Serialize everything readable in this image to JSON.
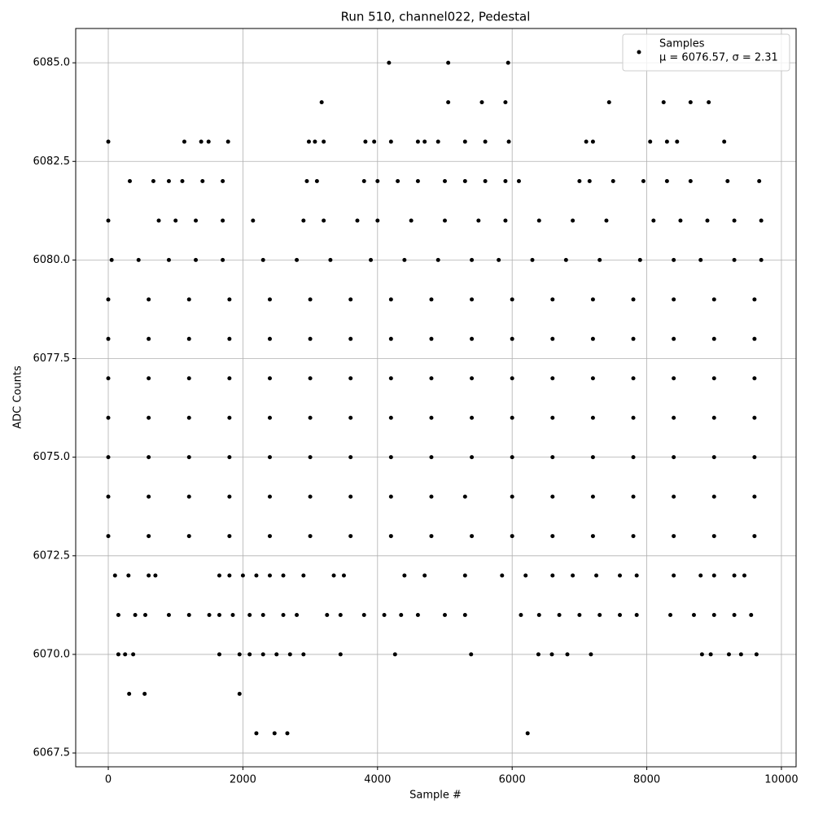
{
  "chart_data": {
    "type": "scatter",
    "title": "Run 510, channel022, Pedestal",
    "x_label": "Sample #",
    "y_label": "ADC Counts",
    "xlim": [
      -484,
      10218
    ],
    "ylim": [
      6067.15,
      6085.87
    ],
    "xticks": [
      0,
      2000,
      4000,
      6000,
      8000,
      10000
    ],
    "yticks": [
      6067.5,
      {
        "value": 6070,
        "label": "6070.0"
      },
      6072.5,
      {
        "value": 6075,
        "label": "6075.0"
      },
      6077.5,
      {
        "value": 6080,
        "label": "6080.0"
      },
      6082.5,
      {
        "value": 6085,
        "label": "6085.0"
      }
    ],
    "grid": true,
    "legend_position": "upper right",
    "legend_note": "μ = 6076.57, σ = 2.31",
    "series": [
      {
        "name": "Samples",
        "color": "#000000",
        "x": [
          4170,
          5050,
          5940,
          3170,
          5050,
          5550,
          5900,
          7440,
          8250,
          8650,
          8920,
          0,
          1130,
          1380,
          1490,
          1780,
          2980,
          3070,
          3200,
          3820,
          3950,
          4200,
          4600,
          4700,
          4900,
          5300,
          5600,
          5950,
          7100,
          7200,
          8050,
          8300,
          8450,
          9150,
          320,
          670,
          900,
          1100,
          1400,
          1700,
          2950,
          3100,
          3800,
          4000,
          4300,
          4600,
          5000,
          5300,
          5600,
          5900,
          6100,
          7000,
          7150,
          7500,
          7950,
          8300,
          8650,
          9200,
          9670,
          0,
          750,
          1000,
          1300,
          1700,
          2150,
          2900,
          3200,
          3700,
          4000,
          4500,
          5000,
          5500,
          5900,
          6400,
          6900,
          7400,
          8100,
          8500,
          8900,
          9300,
          9700,
          50,
          450,
          900,
          1300,
          1700,
          2300,
          2800,
          3300,
          3900,
          4400,
          4900,
          5400,
          5800,
          6300,
          6800,
          7300,
          7900,
          8400,
          8800,
          9300,
          9700,
          0,
          600,
          1200,
          1800,
          2400,
          3000,
          3600,
          4200,
          4800,
          5400,
          6000,
          6600,
          7200,
          7800,
          8400,
          9000,
          9600,
          0,
          600,
          1200,
          1800,
          2400,
          3000,
          3600,
          4200,
          4800,
          5400,
          6000,
          6600,
          7200,
          7800,
          8400,
          9000,
          9600,
          0,
          600,
          1200,
          1800,
          2400,
          3000,
          3600,
          4200,
          4800,
          5400,
          6000,
          6600,
          7200,
          7800,
          8400,
          9000,
          9600,
          0,
          600,
          1200,
          1800,
          2400,
          3000,
          3600,
          4200,
          4800,
          5400,
          6000,
          6600,
          7200,
          7800,
          8400,
          9000,
          9600,
          0,
          600,
          1200,
          1800,
          2400,
          3000,
          3600,
          4200,
          4800,
          5400,
          6000,
          6600,
          7200,
          7800,
          8400,
          9000,
          9600,
          0,
          600,
          1200,
          1800,
          2400,
          3000,
          3600,
          4200,
          4800,
          5300,
          6000,
          6600,
          7200,
          7800,
          8400,
          9000,
          9600,
          0,
          600,
          1200,
          1800,
          2400,
          3000,
          3600,
          4200,
          4800,
          5400,
          6000,
          6600,
          7200,
          7800,
          8400,
          9000,
          9600,
          100,
          300,
          600,
          700,
          1650,
          1800,
          2000,
          2200,
          2400,
          2600,
          2900,
          3350,
          3500,
          4400,
          4700,
          5300,
          5850,
          6200,
          6600,
          6900,
          7250,
          7600,
          7850,
          8400,
          8800,
          9000,
          9300,
          9450,
          150,
          400,
          550,
          900,
          1200,
          1500,
          1650,
          1850,
          2100,
          2300,
          2600,
          2800,
          3250,
          3450,
          3800,
          4100,
          4350,
          4600,
          5000,
          5300,
          6130,
          6400,
          6700,
          7000,
          7300,
          7600,
          7850,
          8350,
          8700,
          9000,
          9300,
          9550,
          150,
          250,
          370,
          1650,
          1950,
          2100,
          2300,
          2500,
          2700,
          2900,
          3450,
          4260,
          5390,
          6390,
          6590,
          6820,
          7170,
          8820,
          8950,
          9220,
          9400,
          9630,
          310,
          540,
          1950,
          2200,
          2470,
          2660,
          6230
        ],
        "values": [
          6085,
          6085,
          6085,
          6084,
          6084,
          6084,
          6084,
          6084,
          6084,
          6084,
          6084,
          6083,
          6083,
          6083,
          6083,
          6083,
          6083,
          6083,
          6083,
          6083,
          6083,
          6083,
          6083,
          6083,
          6083,
          6083,
          6083,
          6083,
          6083,
          6083,
          6083,
          6083,
          6083,
          6083,
          6082,
          6082,
          6082,
          6082,
          6082,
          6082,
          6082,
          6082,
          6082,
          6082,
          6082,
          6082,
          6082,
          6082,
          6082,
          6082,
          6082,
          6082,
          6082,
          6082,
          6082,
          6082,
          6082,
          6082,
          6082,
          6081,
          6081,
          6081,
          6081,
          6081,
          6081,
          6081,
          6081,
          6081,
          6081,
          6081,
          6081,
          6081,
          6081,
          6081,
          6081,
          6081,
          6081,
          6081,
          6081,
          6081,
          6081,
          6080,
          6080,
          6080,
          6080,
          6080,
          6080,
          6080,
          6080,
          6080,
          6080,
          6080,
          6080,
          6080,
          6080,
          6080,
          6080,
          6080,
          6080,
          6080,
          6080,
          6080,
          6079,
          6079,
          6079,
          6079,
          6079,
          6079,
          6079,
          6079,
          6079,
          6079,
          6079,
          6079,
          6079,
          6079,
          6079,
          6079,
          6079,
          6078,
          6078,
          6078,
          6078,
          6078,
          6078,
          6078,
          6078,
          6078,
          6078,
          6078,
          6078,
          6078,
          6078,
          6078,
          6078,
          6078,
          6077,
          6077,
          6077,
          6077,
          6077,
          6077,
          6077,
          6077,
          6077,
          6077,
          6077,
          6077,
          6077,
          6077,
          6077,
          6077,
          6077,
          6076,
          6076,
          6076,
          6076,
          6076,
          6076,
          6076,
          6076,
          6076,
          6076,
          6076,
          6076,
          6076,
          6076,
          6076,
          6076,
          6076,
          6075,
          6075,
          6075,
          6075,
          6075,
          6075,
          6075,
          6075,
          6075,
          6075,
          6075,
          6075,
          6075,
          6075,
          6075,
          6075,
          6075,
          6074,
          6074,
          6074,
          6074,
          6074,
          6074,
          6074,
          6074,
          6074,
          6074,
          6074,
          6074,
          6074,
          6074,
          6074,
          6074,
          6074,
          6073,
          6073,
          6073,
          6073,
          6073,
          6073,
          6073,
          6073,
          6073,
          6073,
          6073,
          6073,
          6073,
          6073,
          6073,
          6073,
          6073,
          6072,
          6072,
          6072,
          6072,
          6072,
          6072,
          6072,
          6072,
          6072,
          6072,
          6072,
          6072,
          6072,
          6072,
          6072,
          6072,
          6072,
          6072,
          6072,
          6072,
          6072,
          6072,
          6072,
          6072,
          6072,
          6072,
          6072,
          6072,
          6071,
          6071,
          6071,
          6071,
          6071,
          6071,
          6071,
          6071,
          6071,
          6071,
          6071,
          6071,
          6071,
          6071,
          6071,
          6071,
          6071,
          6071,
          6071,
          6071,
          6071,
          6071,
          6071,
          6071,
          6071,
          6071,
          6071,
          6071,
          6071,
          6071,
          6071,
          6071,
          6070,
          6070,
          6070,
          6070,
          6070,
          6070,
          6070,
          6070,
          6070,
          6070,
          6070,
          6070,
          6070,
          6070,
          6070,
          6070,
          6070,
          6070,
          6070,
          6070,
          6070,
          6070,
          6069,
          6069,
          6069,
          6068,
          6068,
          6068,
          6068
        ]
      }
    ]
  }
}
